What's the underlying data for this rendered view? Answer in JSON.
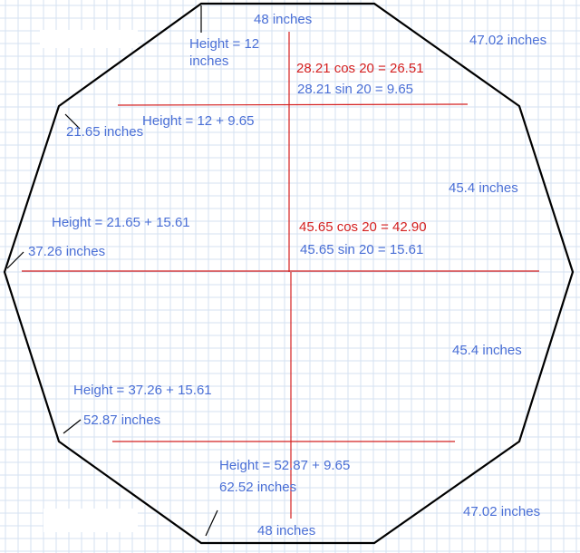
{
  "colors": {
    "background": "#ffffff",
    "grid": "#d4e2f2",
    "outline": "#000000",
    "axis": "#d42020",
    "label_blue": "#4a6fd6",
    "label_red": "#d42020"
  },
  "labels": {
    "top_side": "48 inches",
    "bottom_side": "48 inches",
    "top_right_side": "47.02 inches",
    "bottom_right_side": "47.02 inches",
    "right_upper_side": "45.4 inches",
    "right_lower_side": "45.4 inches",
    "height_top_line1": "Height = 12",
    "height_top_line2": "inches",
    "cos_upper": "28.21 cos 20 = 26.51",
    "sin_upper": "28.21 sin 20 = 9.65",
    "height_2": "Height = 12 + 9.65",
    "measure_2": "21.65 inches",
    "height_3": "Height = 21.65 + 15.61",
    "measure_3": "37.26 inches",
    "cos_middle": "45.65 cos 20 =  42.90",
    "sin_middle": "45.65 sin 20 = 15.61",
    "height_4": "Height = 37.26 + 15.61",
    "measure_4": "52.87 inches",
    "height_5": "Height = 52.87 + 9.65",
    "measure_5": "62.52 inches"
  }
}
